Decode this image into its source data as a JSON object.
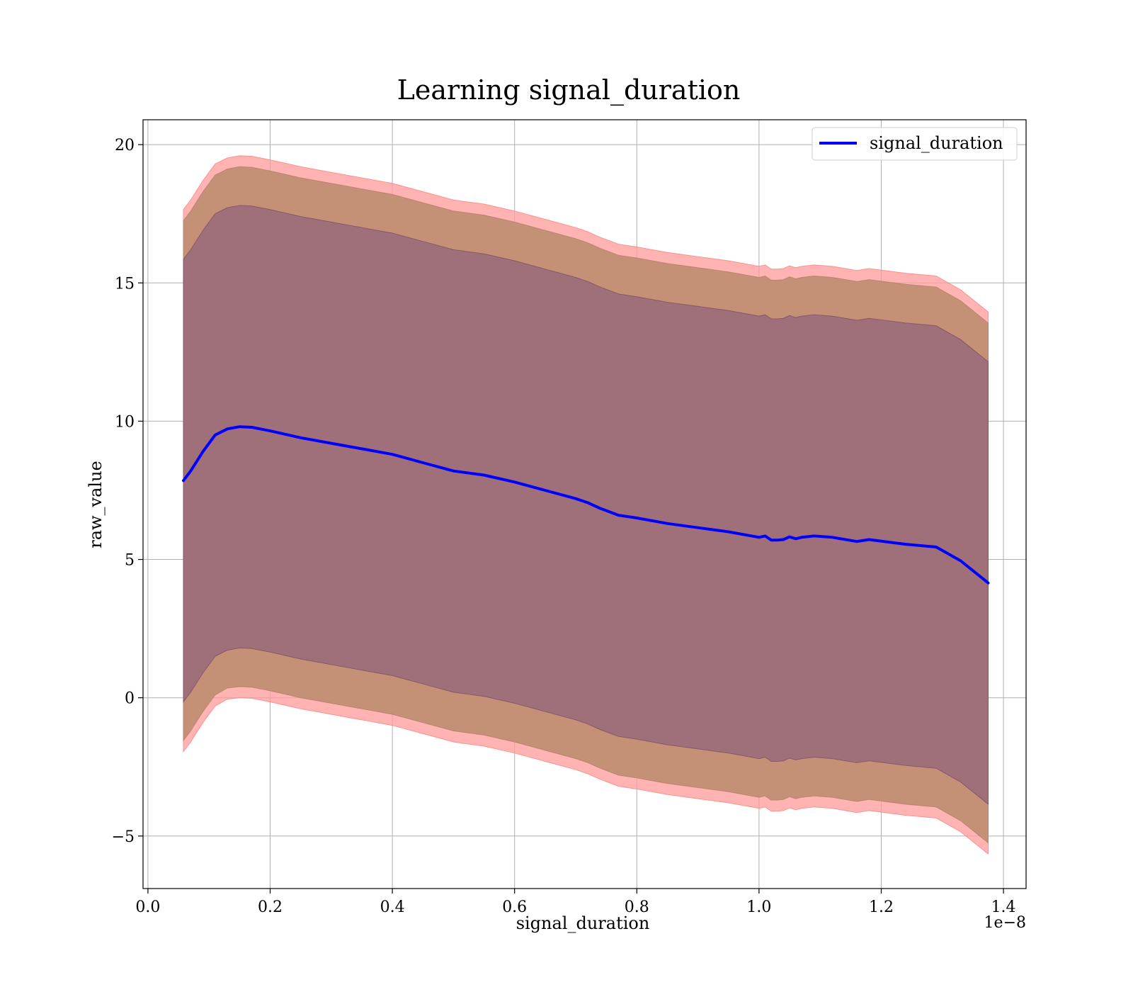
{
  "chart_data": {
    "type": "area",
    "title": "Learning signal_duration",
    "xlabel": "signal_duration",
    "ylabel": "raw_value",
    "x_offset_label": "1e−8",
    "xlim": [
      -0.008,
      1.437
    ],
    "ylim": [
      -6.9,
      20.9
    ],
    "x_ticks": [
      0.0,
      0.2,
      0.4,
      0.6,
      0.8,
      1.0,
      1.2,
      1.4
    ],
    "x_tick_labels": [
      "0.0",
      "0.2",
      "0.4",
      "0.6",
      "0.8",
      "1.0",
      "1.2",
      "1.4"
    ],
    "y_ticks": [
      -5,
      0,
      5,
      10,
      15,
      20
    ],
    "y_tick_labels": [
      "−5",
      "0",
      "5",
      "10",
      "15",
      "20"
    ],
    "grid": true,
    "legend": {
      "position": "top-right",
      "entries": [
        "signal_duration"
      ]
    },
    "colors": {
      "line": "#0000ff",
      "band_outer": "#ff9999",
      "band_middle": "#c49176",
      "band_inner": "#a0707a"
    },
    "x": [
      0.058,
      0.07,
      0.09,
      0.11,
      0.13,
      0.15,
      0.17,
      0.2,
      0.25,
      0.3,
      0.35,
      0.4,
      0.45,
      0.5,
      0.55,
      0.6,
      0.65,
      0.7,
      0.72,
      0.74,
      0.77,
      0.8,
      0.85,
      0.9,
      0.95,
      1.0,
      1.01,
      1.02,
      1.03,
      1.04,
      1.05,
      1.06,
      1.07,
      1.09,
      1.12,
      1.16,
      1.18,
      1.24,
      1.29,
      1.33,
      1.375
    ],
    "series": [
      {
        "name": "signal_duration",
        "values": [
          7.85,
          8.2,
          8.9,
          9.5,
          9.72,
          9.8,
          9.78,
          9.65,
          9.4,
          9.2,
          9.0,
          8.8,
          8.5,
          8.2,
          8.05,
          7.8,
          7.5,
          7.2,
          7.05,
          6.85,
          6.6,
          6.5,
          6.3,
          6.15,
          6.0,
          5.8,
          5.85,
          5.7,
          5.7,
          5.72,
          5.82,
          5.75,
          5.8,
          5.85,
          5.8,
          5.65,
          5.72,
          5.55,
          5.45,
          4.95,
          4.15
        ]
      }
    ],
    "bands": [
      {
        "lower": [
          -1.95,
          -1.6,
          -0.9,
          -0.3,
          -0.05,
          0.0,
          -0.02,
          -0.15,
          -0.4,
          -0.6,
          -0.8,
          -1.0,
          -1.3,
          -1.6,
          -1.75,
          -2.0,
          -2.3,
          -2.6,
          -2.75,
          -2.95,
          -3.2,
          -3.3,
          -3.5,
          -3.65,
          -3.8,
          -4.0,
          -3.95,
          -4.1,
          -4.1,
          -4.08,
          -3.98,
          -4.05,
          -4.0,
          -3.95,
          -4.0,
          -4.15,
          -4.08,
          -4.25,
          -4.35,
          -4.85,
          -5.65
        ],
        "upper": [
          17.65,
          18.0,
          18.7,
          19.3,
          19.52,
          19.6,
          19.58,
          19.45,
          19.2,
          19.0,
          18.8,
          18.6,
          18.3,
          18.0,
          17.85,
          17.6,
          17.3,
          17.0,
          16.85,
          16.65,
          16.4,
          16.3,
          16.1,
          15.95,
          15.8,
          15.6,
          15.65,
          15.5,
          15.5,
          15.52,
          15.62,
          15.55,
          15.6,
          15.65,
          15.6,
          15.45,
          15.52,
          15.35,
          15.25,
          14.75,
          13.95
        ]
      },
      {
        "lower": [
          -1.55,
          -1.2,
          -0.5,
          0.1,
          0.35,
          0.4,
          0.38,
          0.25,
          0.0,
          -0.2,
          -0.4,
          -0.6,
          -0.9,
          -1.2,
          -1.35,
          -1.6,
          -1.9,
          -2.2,
          -2.35,
          -2.55,
          -2.8,
          -2.9,
          -3.1,
          -3.25,
          -3.4,
          -3.6,
          -3.55,
          -3.7,
          -3.7,
          -3.68,
          -3.58,
          -3.65,
          -3.6,
          -3.55,
          -3.6,
          -3.75,
          -3.68,
          -3.85,
          -3.95,
          -4.45,
          -5.25
        ],
        "upper": [
          17.25,
          17.6,
          18.3,
          18.9,
          19.12,
          19.2,
          19.18,
          19.05,
          18.8,
          18.6,
          18.4,
          18.2,
          17.9,
          17.6,
          17.45,
          17.2,
          16.9,
          16.6,
          16.45,
          16.25,
          16.0,
          15.9,
          15.7,
          15.55,
          15.4,
          15.2,
          15.25,
          15.1,
          15.1,
          15.12,
          15.22,
          15.15,
          15.2,
          15.25,
          15.2,
          15.05,
          15.12,
          14.95,
          14.85,
          14.35,
          13.55
        ]
      },
      {
        "lower": [
          -0.15,
          0.2,
          0.9,
          1.5,
          1.72,
          1.8,
          1.78,
          1.65,
          1.4,
          1.2,
          1.0,
          0.8,
          0.5,
          0.2,
          0.05,
          -0.2,
          -0.5,
          -0.8,
          -0.95,
          -1.15,
          -1.4,
          -1.5,
          -1.7,
          -1.85,
          -2.0,
          -2.2,
          -2.15,
          -2.3,
          -2.3,
          -2.28,
          -2.18,
          -2.25,
          -2.2,
          -2.15,
          -2.2,
          -2.35,
          -2.28,
          -2.45,
          -2.55,
          -3.05,
          -3.85
        ],
        "upper": [
          15.85,
          16.2,
          16.9,
          17.5,
          17.72,
          17.8,
          17.78,
          17.65,
          17.4,
          17.2,
          17.0,
          16.8,
          16.5,
          16.2,
          16.05,
          15.8,
          15.5,
          15.2,
          15.05,
          14.85,
          14.6,
          14.5,
          14.3,
          14.15,
          14.0,
          13.8,
          13.85,
          13.7,
          13.7,
          13.72,
          13.82,
          13.75,
          13.8,
          13.85,
          13.8,
          13.65,
          13.72,
          13.55,
          13.45,
          12.95,
          12.15
        ]
      }
    ]
  }
}
